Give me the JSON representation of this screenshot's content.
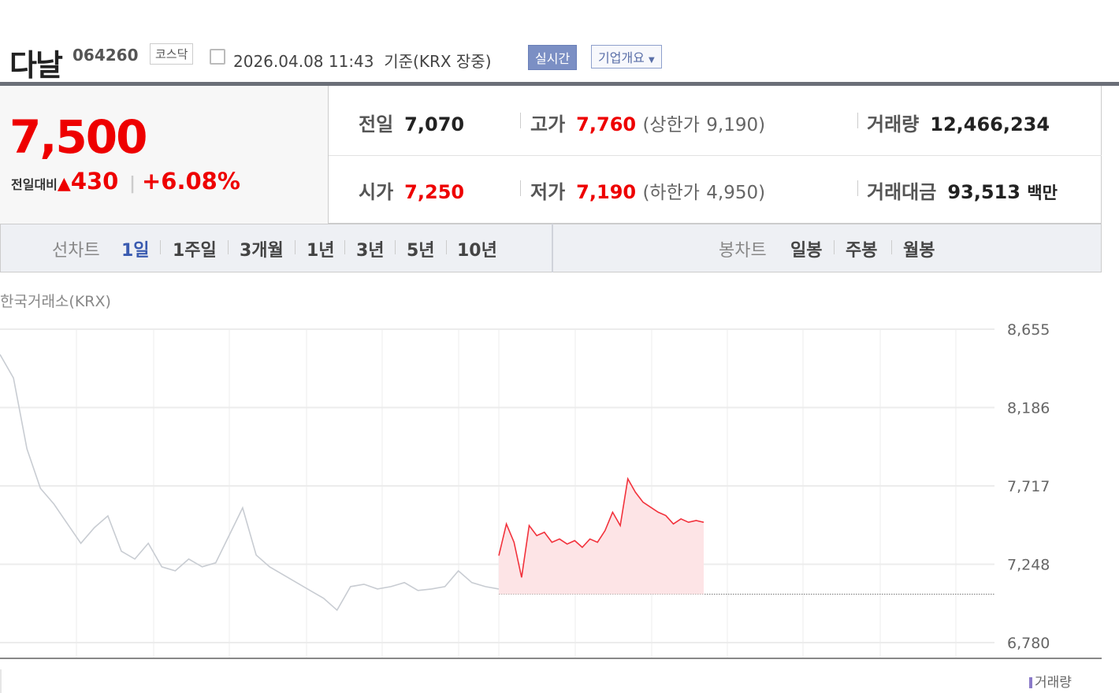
{
  "header": {
    "name": "다날",
    "code": "064260",
    "market": "코스닥",
    "datetime": "2026.04.08 11:43",
    "basis": "기준(KRX 장중)",
    "realtime_button": "실시간",
    "company_button": "기업개요"
  },
  "quote": {
    "price": "7,500",
    "change_label": "전일대비",
    "change": "430",
    "change_pct": "+6.08%",
    "up_color": "#e00000"
  },
  "summary": {
    "prev_close_label": "전일",
    "prev_close": "7,070",
    "high_label": "고가",
    "high": "7,760",
    "upper_limit_label": "(상한가",
    "upper_limit": "9,190)",
    "volume_label": "거래량",
    "volume": "12,466,234",
    "open_label": "시가",
    "open": "7,250",
    "low_label": "저가",
    "low": "7,190",
    "lower_limit_label": "(하한가",
    "lower_limit": "4,950)",
    "amount_label": "거래대금",
    "amount": "93,513",
    "amount_unit": "백만"
  },
  "line_tabs": {
    "label": "선차트",
    "items": [
      "1일",
      "1주일",
      "3개월",
      "1년",
      "3년",
      "5년",
      "10년"
    ],
    "active": "1일"
  },
  "candle_tabs": {
    "label": "봉차트",
    "items": [
      "일봉",
      "주봉",
      "월봉"
    ]
  },
  "exchange": "한국거래소(KRX)",
  "volume_legend": "거래량",
  "chart_data": {
    "type": "line",
    "y_ticks": [
      "8,655",
      "8,186",
      "7,717",
      "7,248",
      "6,780"
    ],
    "ylim": [
      6780,
      8655
    ],
    "prev_close": 7070,
    "grid": true,
    "series": [
      {
        "color": "#c8ccd2",
        "values": [
          8504,
          8363,
          7939,
          7703,
          7609,
          7491,
          7374,
          7468,
          7538,
          7327,
          7280,
          7374,
          7233,
          7209,
          7280,
          7233,
          7257,
          7421,
          7586,
          7304,
          7233,
          7186,
          7139,
          7092,
          7045,
          6974,
          7115,
          7129,
          7101,
          7115,
          7139,
          7092,
          7101,
          7115,
          7209,
          7139,
          7115,
          7101
        ]
      },
      {
        "color": "#f2323c",
        "fill": "#fde4e6",
        "values": [
          7300,
          7490,
          7380,
          7170,
          7480,
          7420,
          7440,
          7380,
          7400,
          7370,
          7390,
          7350,
          7400,
          7380,
          7450,
          7560,
          7480,
          7760,
          7680,
          7620,
          7590,
          7560,
          7540,
          7490,
          7520,
          7500,
          7510,
          7500
        ]
      }
    ]
  }
}
